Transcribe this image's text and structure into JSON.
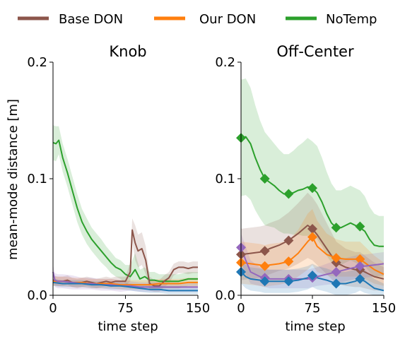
{
  "legend": [
    {
      "name": "Base DON",
      "color": "#8c564b"
    },
    {
      "name": "Our DON",
      "color": "#ff7f0e"
    },
    {
      "name": "NoTemp",
      "color": "#2ca02c"
    }
  ],
  "ylabel": "mean-mode distance [m]",
  "chart_data": [
    {
      "type": "line",
      "title": "Knob",
      "xlabel": "time step",
      "xlim": [
        0,
        150
      ],
      "ylim": [
        0,
        0.2
      ],
      "xticks": [
        "0",
        "75",
        "150"
      ],
      "yticks": [
        "0.0",
        "0.1",
        "0.2"
      ],
      "series": [
        {
          "color": "#2ca02c",
          "x": [
            0,
            3,
            6,
            10,
            15,
            20,
            25,
            30,
            35,
            40,
            45,
            50,
            55,
            60,
            65,
            70,
            75,
            80,
            85,
            90,
            95,
            100,
            105,
            110,
            115,
            120,
            125,
            130,
            135,
            140,
            145,
            150
          ],
          "y": [
            0.131,
            0.13,
            0.133,
            0.118,
            0.105,
            0.09,
            0.075,
            0.063,
            0.055,
            0.048,
            0.043,
            0.038,
            0.033,
            0.028,
            0.024,
            0.022,
            0.018,
            0.016,
            0.022,
            0.014,
            0.016,
            0.013,
            0.013,
            0.012,
            0.012,
            0.012,
            0.012,
            0.012,
            0.013,
            0.014,
            0.014,
            0.014
          ],
          "band": [
            0.015,
            0.015,
            0.012,
            0.012,
            0.012,
            0.012,
            0.012,
            0.011,
            0.011,
            0.01,
            0.01,
            0.01,
            0.009,
            0.009,
            0.008,
            0.008,
            0.008,
            0.01,
            0.014,
            0.008,
            0.008,
            0.007,
            0.007,
            0.006,
            0.006,
            0.006,
            0.006,
            0.006,
            0.006,
            0.006,
            0.006,
            0.006
          ]
        },
        {
          "color": "#8c564b",
          "x": [
            0,
            5,
            10,
            15,
            20,
            25,
            30,
            35,
            40,
            45,
            50,
            55,
            60,
            65,
            70,
            75,
            80,
            82,
            85,
            88,
            92,
            96,
            100,
            105,
            110,
            115,
            120,
            125,
            130,
            135,
            140,
            145,
            150
          ],
          "y": [
            0.013,
            0.012,
            0.012,
            0.013,
            0.011,
            0.01,
            0.011,
            0.012,
            0.011,
            0.01,
            0.011,
            0.012,
            0.011,
            0.012,
            0.012,
            0.012,
            0.02,
            0.056,
            0.045,
            0.038,
            0.04,
            0.03,
            0.01,
            0.008,
            0.008,
            0.012,
            0.015,
            0.022,
            0.024,
            0.024,
            0.023,
            0.024,
            0.024
          ],
          "band": [
            0.004,
            0.004,
            0.004,
            0.004,
            0.004,
            0.004,
            0.004,
            0.004,
            0.004,
            0.004,
            0.004,
            0.004,
            0.004,
            0.004,
            0.004,
            0.004,
            0.008,
            0.01,
            0.015,
            0.014,
            0.014,
            0.012,
            0.006,
            0.005,
            0.005,
            0.005,
            0.005,
            0.005,
            0.005,
            0.005,
            0.005,
            0.005,
            0.005
          ]
        },
        {
          "color": "#ff7f0e",
          "x": [
            0,
            10,
            20,
            30,
            40,
            50,
            60,
            70,
            80,
            90,
            100,
            110,
            120,
            130,
            140,
            150
          ],
          "y": [
            0.012,
            0.012,
            0.011,
            0.011,
            0.01,
            0.01,
            0.01,
            0.009,
            0.009,
            0.009,
            0.009,
            0.01,
            0.01,
            0.01,
            0.011,
            0.011
          ],
          "band": [
            0.004,
            0.004,
            0.004,
            0.004,
            0.004,
            0.004,
            0.004,
            0.004,
            0.004,
            0.004,
            0.004,
            0.004,
            0.004,
            0.004,
            0.004,
            0.004
          ]
        },
        {
          "color": "#9467bd",
          "x": [
            0,
            2,
            5,
            10,
            20,
            30,
            40,
            50,
            60,
            70,
            80,
            90,
            100,
            110,
            120,
            130,
            140,
            150
          ],
          "y": [
            0.02,
            0.013,
            0.012,
            0.012,
            0.011,
            0.01,
            0.01,
            0.009,
            0.009,
            0.008,
            0.008,
            0.007,
            0.007,
            0.007,
            0.007,
            0.007,
            0.007,
            0.007
          ],
          "band": [
            0.006,
            0.006,
            0.006,
            0.006,
            0.006,
            0.005,
            0.005,
            0.005,
            0.005,
            0.005,
            0.004,
            0.004,
            0.004,
            0.004,
            0.004,
            0.004,
            0.004,
            0.004
          ]
        },
        {
          "color": "#1f77b4",
          "x": [
            0,
            10,
            20,
            30,
            40,
            50,
            60,
            70,
            80,
            90,
            100,
            110,
            120,
            130,
            140,
            150
          ],
          "y": [
            0.011,
            0.01,
            0.01,
            0.01,
            0.009,
            0.009,
            0.008,
            0.008,
            0.007,
            0.006,
            0.005,
            0.005,
            0.004,
            0.004,
            0.004,
            0.004
          ],
          "band": [
            0.003,
            0.003,
            0.003,
            0.003,
            0.003,
            0.003,
            0.003,
            0.003,
            0.003,
            0.003,
            0.003,
            0.003,
            0.003,
            0.003,
            0.003,
            0.003
          ]
        }
      ]
    },
    {
      "type": "line",
      "title": "Off-Center",
      "xlabel": "time step",
      "xlim": [
        0,
        150
      ],
      "ylim": [
        0,
        0.2
      ],
      "xticks": [
        "0",
        "75",
        "150"
      ],
      "yticks": [
        "0.0",
        "0.1",
        "0.2"
      ],
      "series": [
        {
          "color": "#2ca02c",
          "x": [
            0,
            5,
            10,
            15,
            20,
            25,
            30,
            35,
            40,
            45,
            50,
            55,
            60,
            65,
            70,
            75,
            80,
            85,
            90,
            95,
            100,
            105,
            110,
            115,
            120,
            125,
            130,
            135,
            140,
            145,
            150
          ],
          "y": [
            0.135,
            0.136,
            0.13,
            0.118,
            0.108,
            0.1,
            0.097,
            0.094,
            0.09,
            0.087,
            0.087,
            0.088,
            0.09,
            0.091,
            0.093,
            0.092,
            0.088,
            0.08,
            0.07,
            0.062,
            0.058,
            0.058,
            0.06,
            0.062,
            0.06,
            0.058,
            0.055,
            0.048,
            0.043,
            0.042,
            0.042
          ],
          "band": [
            0.05,
            0.05,
            0.048,
            0.045,
            0.042,
            0.04,
            0.038,
            0.036,
            0.035,
            0.034,
            0.034,
            0.036,
            0.038,
            0.04,
            0.042,
            0.04,
            0.04,
            0.038,
            0.036,
            0.034,
            0.032,
            0.032,
            0.032,
            0.032,
            0.032,
            0.032,
            0.03,
            0.028,
            0.027,
            0.026,
            0.026
          ],
          "markers": [
            [
              0,
              0.135
            ],
            [
              25,
              0.1
            ],
            [
              50,
              0.087
            ],
            [
              75,
              0.092
            ],
            [
              100,
              0.058
            ],
            [
              125,
              0.059
            ]
          ]
        },
        {
          "color": "#8c564b",
          "x": [
            0,
            10,
            20,
            25,
            30,
            40,
            50,
            60,
            70,
            75,
            80,
            90,
            100,
            110,
            120,
            125,
            130,
            140,
            150
          ],
          "y": [
            0.035,
            0.036,
            0.037,
            0.038,
            0.04,
            0.043,
            0.047,
            0.053,
            0.06,
            0.057,
            0.052,
            0.04,
            0.028,
            0.024,
            0.022,
            0.022,
            0.02,
            0.016,
            0.014
          ],
          "band": [
            0.022,
            0.022,
            0.022,
            0.022,
            0.022,
            0.022,
            0.024,
            0.026,
            0.028,
            0.027,
            0.026,
            0.022,
            0.018,
            0.016,
            0.015,
            0.015,
            0.014,
            0.012,
            0.01
          ],
          "markers": [
            [
              0,
              0.035
            ],
            [
              25,
              0.038
            ],
            [
              50,
              0.047
            ],
            [
              75,
              0.057
            ],
            [
              100,
              0.028
            ],
            [
              125,
              0.022
            ]
          ]
        },
        {
          "color": "#ff7f0e",
          "x": [
            0,
            10,
            20,
            25,
            30,
            40,
            50,
            60,
            70,
            75,
            80,
            90,
            100,
            110,
            120,
            125,
            130,
            140,
            150
          ],
          "y": [
            0.028,
            0.027,
            0.026,
            0.025,
            0.026,
            0.027,
            0.029,
            0.036,
            0.046,
            0.05,
            0.042,
            0.035,
            0.032,
            0.031,
            0.031,
            0.031,
            0.028,
            0.022,
            0.018
          ],
          "band": [
            0.018,
            0.018,
            0.018,
            0.018,
            0.018,
            0.018,
            0.018,
            0.02,
            0.024,
            0.024,
            0.022,
            0.018,
            0.016,
            0.015,
            0.015,
            0.015,
            0.014,
            0.012,
            0.01
          ],
          "markers": [
            [
              0,
              0.028
            ],
            [
              25,
              0.025
            ],
            [
              50,
              0.029
            ],
            [
              75,
              0.05
            ],
            [
              100,
              0.032
            ],
            [
              125,
              0.031
            ]
          ]
        },
        {
          "color": "#9467bd",
          "x": [
            0,
            5,
            10,
            20,
            25,
            30,
            40,
            50,
            60,
            70,
            75,
            80,
            90,
            100,
            110,
            120,
            125,
            130,
            140,
            150
          ],
          "y": [
            0.041,
            0.03,
            0.02,
            0.016,
            0.015,
            0.014,
            0.014,
            0.014,
            0.014,
            0.014,
            0.015,
            0.016,
            0.018,
            0.02,
            0.022,
            0.024,
            0.025,
            0.025,
            0.026,
            0.027
          ],
          "band": [
            0.012,
            0.012,
            0.01,
            0.008,
            0.008,
            0.008,
            0.008,
            0.008,
            0.008,
            0.008,
            0.008,
            0.008,
            0.009,
            0.01,
            0.01,
            0.01,
            0.01,
            0.01,
            0.01,
            0.01
          ],
          "markers": [
            [
              0,
              0.041
            ],
            [
              25,
              0.015
            ],
            [
              50,
              0.014
            ],
            [
              75,
              0.015
            ],
            [
              100,
              0.02
            ],
            [
              125,
              0.025
            ]
          ]
        },
        {
          "color": "#1f77b4",
          "x": [
            0,
            5,
            10,
            20,
            25,
            30,
            40,
            50,
            60,
            70,
            75,
            80,
            90,
            100,
            110,
            120,
            125,
            130,
            140,
            150
          ],
          "y": [
            0.02,
            0.016,
            0.014,
            0.013,
            0.012,
            0.012,
            0.012,
            0.012,
            0.013,
            0.015,
            0.017,
            0.015,
            0.013,
            0.01,
            0.01,
            0.012,
            0.014,
            0.012,
            0.006,
            0.004
          ],
          "band": [
            0.01,
            0.01,
            0.01,
            0.01,
            0.01,
            0.01,
            0.01,
            0.01,
            0.01,
            0.01,
            0.01,
            0.01,
            0.01,
            0.01,
            0.01,
            0.01,
            0.01,
            0.01,
            0.008,
            0.006
          ],
          "markers": [
            [
              0,
              0.02
            ],
            [
              25,
              0.012
            ],
            [
              50,
              0.012
            ],
            [
              75,
              0.017
            ],
            [
              100,
              0.01
            ],
            [
              125,
              0.014
            ]
          ]
        }
      ]
    }
  ]
}
